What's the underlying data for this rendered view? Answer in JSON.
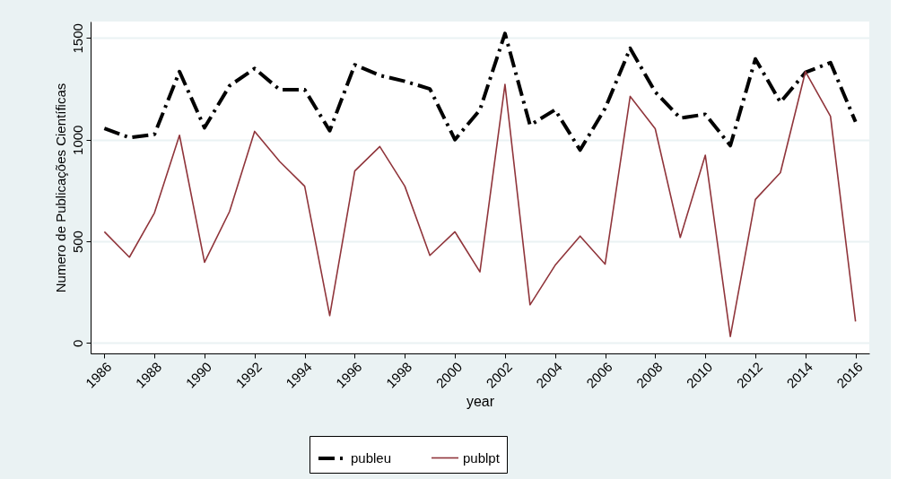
{
  "chart_data": {
    "type": "line",
    "xlabel": "year",
    "ylabel": "Numero de Publicações Científicas",
    "x": [
      1986,
      1987,
      1988,
      1989,
      1990,
      1991,
      1992,
      1993,
      1994,
      1995,
      1996,
      1997,
      1998,
      1999,
      2000,
      2001,
      2002,
      2003,
      2004,
      2005,
      2006,
      2007,
      2008,
      2009,
      2010,
      2011,
      2012,
      2013,
      2014,
      2015,
      2016
    ],
    "series": [
      {
        "name": "publeu",
        "color": "#000000",
        "line_style": "dashed",
        "values": [
          1056,
          1010,
          1026,
          1335,
          1059,
          1265,
          1350,
          1246,
          1246,
          1044,
          1368,
          1316,
          1287,
          1250,
          1000,
          1147,
          1522,
          1071,
          1147,
          949,
          1154,
          1449,
          1235,
          1106,
          1125,
          971,
          1397,
          1184,
          1331,
          1379,
          1088
        ]
      },
      {
        "name": "publpt",
        "color": "#90353b",
        "line_style": "solid",
        "values": [
          547,
          422,
          640,
          1022,
          397,
          647,
          1041,
          893,
          771,
          135,
          846,
          966,
          771,
          431,
          547,
          350,
          1272,
          188,
          382,
          526,
          388,
          1213,
          1054,
          519,
          924,
          32,
          706,
          838,
          1335,
          1115,
          106
        ]
      }
    ],
    "xlim": [
      1985.45,
      2016.55
    ],
    "xticks": [
      1986,
      1988,
      1990,
      1992,
      1994,
      1996,
      1998,
      2000,
      2002,
      2004,
      2006,
      2008,
      2010,
      2012,
      2014,
      2016
    ],
    "ylim": [
      -51,
      1581
    ],
    "yticks": [
      0,
      500,
      1000,
      1500
    ],
    "grid": "y",
    "legend": "bottom",
    "marker": "none"
  }
}
